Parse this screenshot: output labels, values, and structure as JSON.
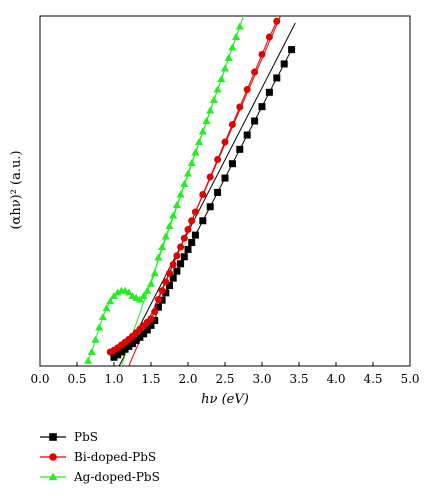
{
  "chart_data": {
    "type": "scatter",
    "xlabel": "hν (eV)",
    "ylabel": "(αhν)² (a.u.)",
    "xlim": [
      0.0,
      5.0
    ],
    "ylim": [
      0.0,
      1.0
    ],
    "x_ticks": [
      "0.0",
      "0.5",
      "1.0",
      "1.5",
      "2.0",
      "2.5",
      "3.0",
      "3.5",
      "4.0",
      "4.5",
      "5.0"
    ],
    "y_ticks_shown": false,
    "legend_position": "bottom-left, below plot",
    "series": [
      {
        "name": "PbS",
        "color": "#000000",
        "marker": "square",
        "x": [
          1.0,
          1.05,
          1.1,
          1.15,
          1.2,
          1.25,
          1.3,
          1.35,
          1.4,
          1.45,
          1.5,
          1.55,
          1.6,
          1.65,
          1.7,
          1.75,
          1.8,
          1.85,
          1.9,
          1.95,
          2.0,
          2.05,
          2.1,
          2.2,
          2.3,
          2.4,
          2.5,
          2.6,
          2.7,
          2.8,
          2.9,
          3.0,
          3.1,
          3.2,
          3.3,
          3.4
        ],
        "y": [
          0.025,
          0.032,
          0.04,
          0.048,
          0.056,
          0.064,
          0.073,
          0.082,
          0.092,
          0.103,
          0.116,
          0.13,
          0.168,
          0.188,
          0.209,
          0.23,
          0.251,
          0.271,
          0.292,
          0.312,
          0.333,
          0.353,
          0.374,
          0.415,
          0.455,
          0.496,
          0.537,
          0.578,
          0.619,
          0.66,
          0.7,
          0.741,
          0.782,
          0.823,
          0.863,
          0.904
        ],
        "fit_x": [
          1.07,
          3.45
        ],
        "fit_y": [
          0.0,
          0.98
        ]
      },
      {
        "name": "Bi-doped-PbS",
        "color": "#e00000",
        "marker": "circle",
        "x": [
          0.95,
          1.0,
          1.05,
          1.1,
          1.15,
          1.2,
          1.25,
          1.3,
          1.35,
          1.4,
          1.45,
          1.5,
          1.55,
          1.6,
          1.65,
          1.7,
          1.75,
          1.8,
          1.85,
          1.9,
          1.95,
          2.0,
          2.05,
          2.1,
          2.2,
          2.3,
          2.4,
          2.5,
          2.6,
          2.7,
          2.8,
          2.9,
          3.0,
          3.1,
          3.2
        ],
        "y": [
          0.04,
          0.045,
          0.052,
          0.06,
          0.068,
          0.076,
          0.085,
          0.095,
          0.105,
          0.115,
          0.125,
          0.135,
          0.155,
          0.19,
          0.215,
          0.24,
          0.265,
          0.29,
          0.315,
          0.34,
          0.365,
          0.39,
          0.415,
          0.44,
          0.49,
          0.54,
          0.59,
          0.64,
          0.69,
          0.74,
          0.79,
          0.84,
          0.89,
          0.94,
          0.985
        ],
        "fit_x": [
          1.2,
          3.25
        ],
        "fit_y": [
          0.0,
          1.0
        ]
      },
      {
        "name": "Ag-doped-PbS",
        "color": "#22ee22",
        "marker": "triangle",
        "x": [
          0.65,
          0.7,
          0.75,
          0.8,
          0.85,
          0.9,
          0.95,
          1.0,
          1.05,
          1.1,
          1.15,
          1.2,
          1.25,
          1.3,
          1.35,
          1.4,
          1.45,
          1.5,
          1.55,
          1.6,
          1.65,
          1.7,
          1.75,
          1.8,
          1.85,
          1.9,
          1.95,
          2.0,
          2.05,
          2.1,
          2.15,
          2.2,
          2.25,
          2.3,
          2.35,
          2.4,
          2.45,
          2.5,
          2.55,
          2.6,
          2.65,
          2.7
        ],
        "y": [
          0.015,
          0.04,
          0.075,
          0.11,
          0.14,
          0.165,
          0.185,
          0.2,
          0.21,
          0.215,
          0.215,
          0.21,
          0.2,
          0.195,
          0.19,
          0.2,
          0.215,
          0.235,
          0.265,
          0.31,
          0.34,
          0.37,
          0.4,
          0.43,
          0.46,
          0.49,
          0.52,
          0.55,
          0.58,
          0.61,
          0.64,
          0.67,
          0.7,
          0.73,
          0.76,
          0.79,
          0.82,
          0.85,
          0.88,
          0.91,
          0.94,
          0.97
        ],
        "fit_x": [
          1.1,
          2.75
        ],
        "fit_y": [
          0.0,
          1.0
        ]
      }
    ]
  }
}
